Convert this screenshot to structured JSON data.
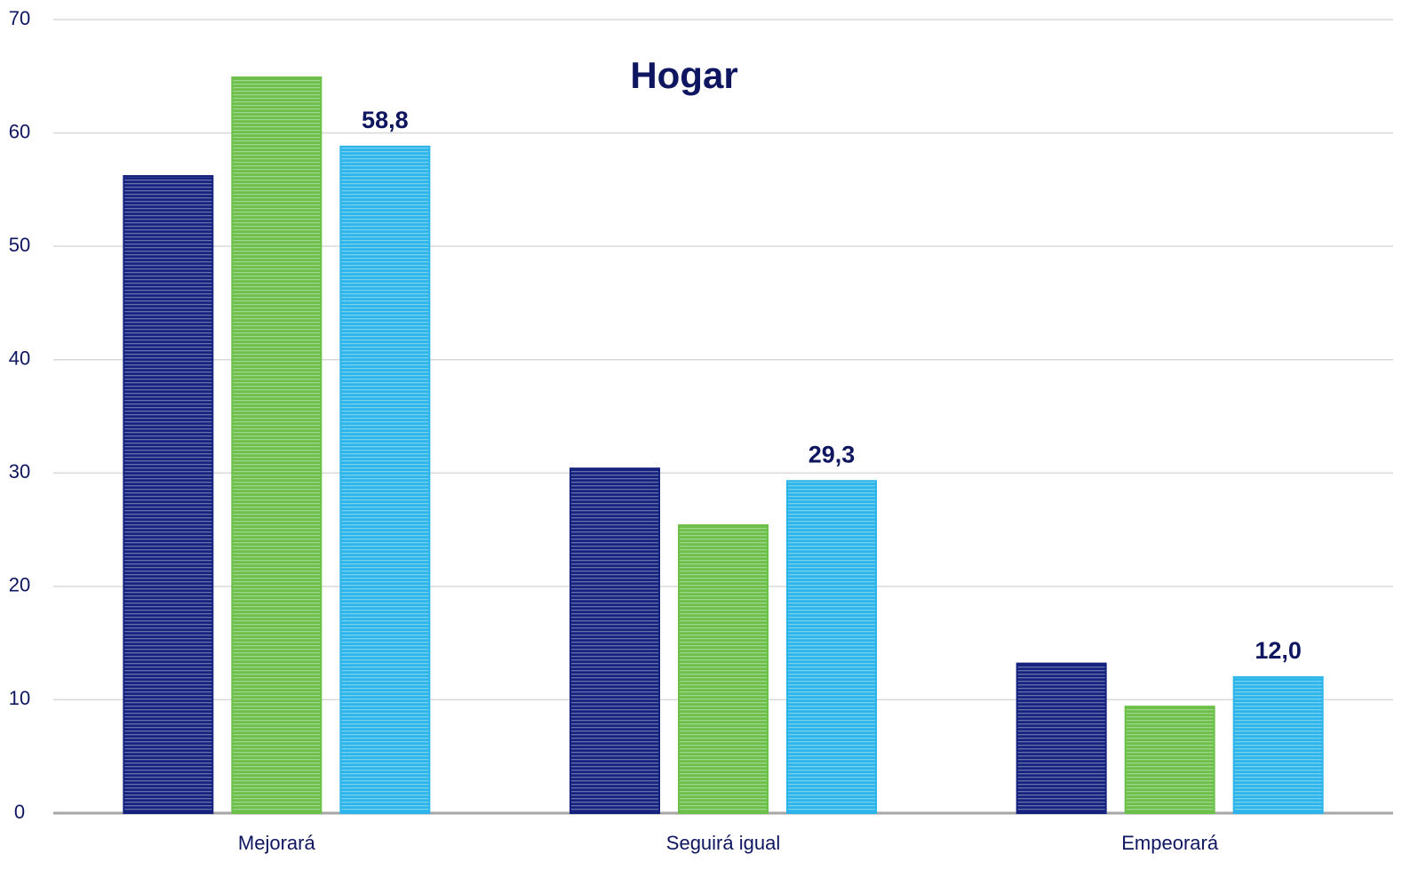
{
  "chart_data": {
    "type": "bar",
    "title": "Hogar",
    "categories": [
      "Mejorará",
      "Seguirá igual",
      "Empeorará"
    ],
    "series": [
      {
        "color": "#15237e",
        "values": [
          56.2,
          30.4,
          13.2
        ]
      },
      {
        "color": "#6cc04a",
        "values": [
          64.9,
          25.4,
          9.4
        ]
      },
      {
        "color": "#2bb5ea",
        "values": [
          58.8,
          29.3,
          12.0
        ],
        "value_labels": [
          "58,8",
          "29,3",
          "12,0"
        ]
      }
    ],
    "ylim": [
      0,
      70
    ],
    "yticks": [
      0,
      10,
      20,
      30,
      40,
      50,
      60,
      70
    ],
    "grid": true
  }
}
